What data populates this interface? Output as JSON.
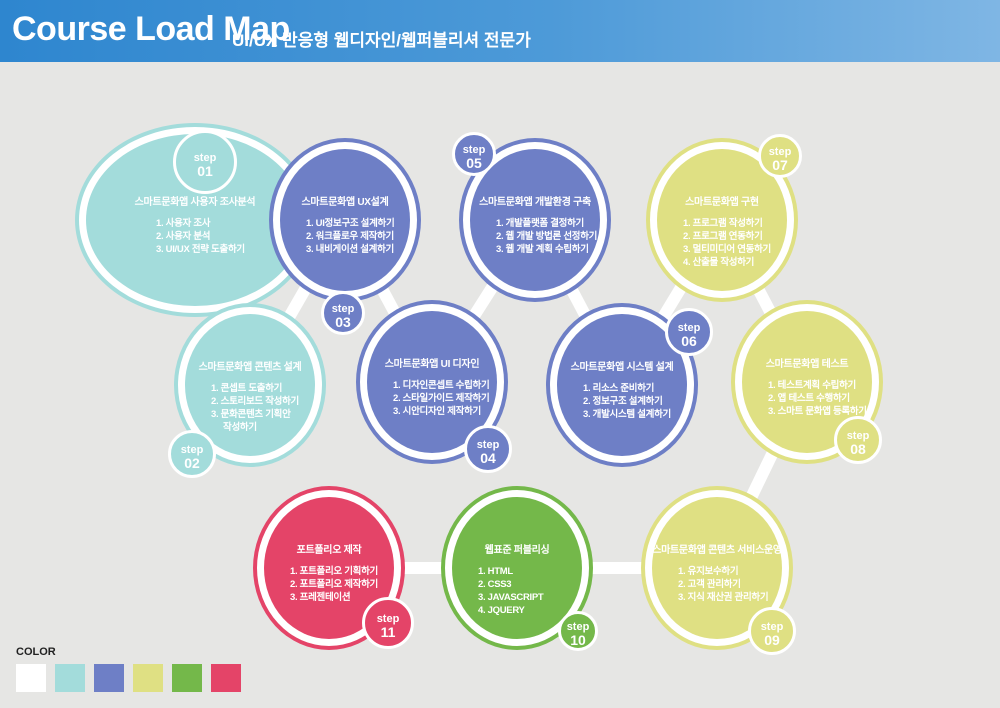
{
  "header": {
    "title": "Course Load Map",
    "subtitle": "UI/UX 반응형 웹디자인/웹퍼블리셔 전문가"
  },
  "step_label": "step",
  "steps": [
    {
      "num": "01",
      "color": "#a3dcdb",
      "title": "스마트문화앱 사용자 조사분석",
      "items": [
        "1. 사용자 조사",
        "2. 사용자 분석",
        "3. UI/UX 전략 도출하기"
      ]
    },
    {
      "num": "02",
      "color": "#a3dcdb",
      "title": "스마트문화앱 콘텐츠 설계",
      "items": [
        "1. 콘셉트 도출하기",
        "2. 스토리보드 작성하기",
        "3. 문화콘텐츠 기획안",
        "작성하기"
      ]
    },
    {
      "num": "03",
      "color": "#6e7fc6",
      "title": "스마트문화앱 UX설계",
      "items": [
        "1. UI정보구조 설계하기",
        "2. 워크플로우 제작하기",
        "3. 내비게이션 설계하기"
      ]
    },
    {
      "num": "04",
      "color": "#6e7fc6",
      "title": "스마트문화앱 UI 디자인",
      "items": [
        "1. 디자인콘셉트 수립하기",
        "2. 스타일가이드 제작하기",
        "3. 시안디자인 제작하기"
      ]
    },
    {
      "num": "05",
      "color": "#6e7fc6",
      "title": "스마트문화앱 개발환경 구축",
      "items": [
        "1. 개발플랫폼 결정하기",
        "2. 웹 개발 방법론 선정하기",
        "3. 웹 개발 계획 수립하기"
      ]
    },
    {
      "num": "06",
      "color": "#6e7fc6",
      "title": "스마트문화앱 시스템 설계",
      "items": [
        "1. 리소스 준비하기",
        "2. 정보구조 설계하기",
        "3. 개발시스템 설계하기"
      ]
    },
    {
      "num": "07",
      "color": "#dfe083",
      "title": "스마트문화앱 구현",
      "items": [
        "1. 프로그램 작성하기",
        "2. 프로그램 연동하기",
        "3. 멀티미디어 연동하기",
        "4. 산출물 작성하기"
      ]
    },
    {
      "num": "08",
      "color": "#dfe083",
      "title": "스마트문화앱 테스트",
      "items": [
        "1. 테스트계획 수립하기",
        "2. 앱 테스트 수행하기",
        "3. 스마트 문화앱 등록하기"
      ]
    },
    {
      "num": "09",
      "color": "#dfe083",
      "title": "스마트문화앱 콘텐츠 서비스운영",
      "items": [
        "1. 유지보수하기",
        "2. 고객 관리하기",
        "3. 지식 재산권 관리하기"
      ]
    },
    {
      "num": "10",
      "color": "#74b84a",
      "title": "웹표준 퍼블리싱",
      "items": [
        "1. HTML",
        "2. CSS3",
        "3. JAVASCRIPT",
        "4. JQUERY"
      ]
    },
    {
      "num": "11",
      "color": "#e44468",
      "title": "포트폴리오 제작",
      "items": [
        "1. 포트폴리오 기획하기",
        "2. 포트폴리오 제작하기",
        "3. 프레젠테이션"
      ]
    }
  ],
  "legend": {
    "label": "COLOR",
    "swatches": [
      "#ffffff",
      "#a3dcdb",
      "#6e7fc6",
      "#dfe083",
      "#74b84a",
      "#e44468"
    ]
  }
}
